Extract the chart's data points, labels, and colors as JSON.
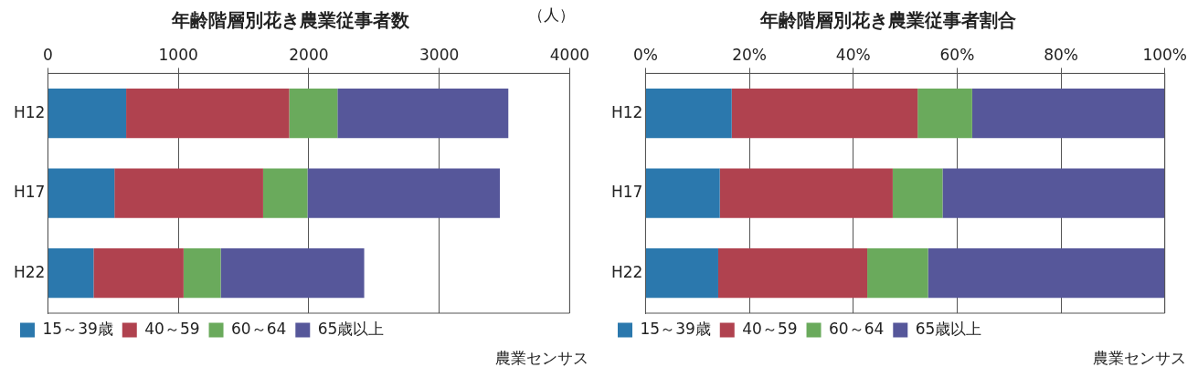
{
  "chart_data": [
    {
      "type": "bar",
      "orientation": "horizontal",
      "stacked": true,
      "title": "年齢階層別花き農業従事者数",
      "xlabel": "（人）",
      "categories": [
        "H12",
        "H17",
        "H22"
      ],
      "series": [
        {
          "name": "15～39歳",
          "color": "#2b78ad",
          "values": [
            600,
            510,
            350
          ]
        },
        {
          "name": "40～59",
          "color": "#b0424f",
          "values": [
            1250,
            1140,
            690
          ]
        },
        {
          "name": "60～64",
          "color": "#6aaa5c",
          "values": [
            370,
            340,
            285
          ]
        },
        {
          "name": "65歳以上",
          "color": "#56579a",
          "values": [
            1310,
            1475,
            1100
          ]
        }
      ],
      "xlim": [
        0,
        4000
      ],
      "xticks": [
        0,
        1000,
        2000,
        3000,
        4000
      ],
      "grid": "x",
      "legend": "bottom",
      "annotations": [
        "農業センサス"
      ]
    },
    {
      "type": "bar",
      "orientation": "horizontal",
      "stacked": true,
      "title": "年齢階層別花き農業従事者割合",
      "categories": [
        "H12",
        "H17",
        "H22"
      ],
      "series": [
        {
          "name": "15～39歳",
          "color": "#2b78ad",
          "values": [
            16.6,
            14.3,
            14.0
          ]
        },
        {
          "name": "40～59",
          "color": "#b0424f",
          "values": [
            35.8,
            33.3,
            28.7
          ]
        },
        {
          "name": "60～64",
          "color": "#6aaa5c",
          "values": [
            10.5,
            9.6,
            11.7
          ]
        },
        {
          "name": "65歳以上",
          "color": "#56579a",
          "values": [
            37.1,
            42.8,
            45.6
          ]
        }
      ],
      "xlim": [
        0,
        100
      ],
      "xticks": [
        {
          "value": 0,
          "label": "0%"
        },
        {
          "value": 20,
          "label": "20%"
        },
        {
          "value": 40,
          "label": "40%"
        },
        {
          "value": 60,
          "label": "60%"
        },
        {
          "value": 80,
          "label": "80%"
        },
        {
          "value": 100,
          "label": "100%"
        }
      ],
      "grid": "x",
      "legend": "bottom",
      "annotations": [
        "農業センサス"
      ]
    }
  ]
}
